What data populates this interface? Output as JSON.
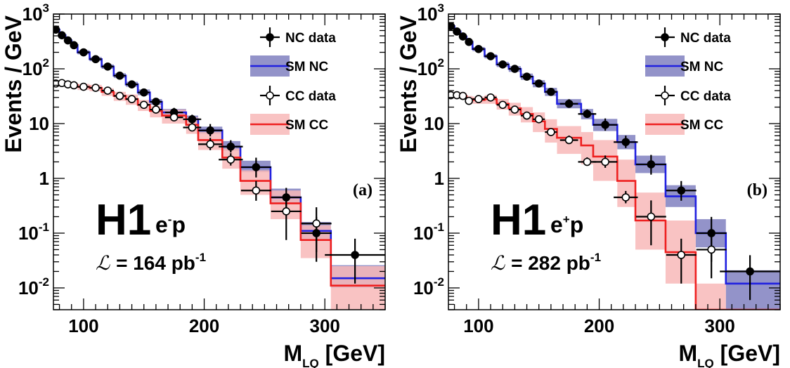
{
  "chart_data": [
    {
      "type": "line",
      "panel_label": "(a)",
      "experiment": "H1",
      "beam": {
        "base": "e",
        "charge": "-",
        "target": "p"
      },
      "lumi": {
        "symbol": "ℒ",
        "text": "= 164 pb",
        "exp": "-1"
      },
      "xlabel": {
        "main": "M",
        "sub": "LQ",
        "unit": "[GeV]"
      },
      "ylabel": "Events / GeV",
      "xlim": [
        75,
        350
      ],
      "ylim": [
        0.004,
        1000
      ],
      "yscale": "log",
      "x_ticks": [
        "100",
        "200",
        "300"
      ],
      "y_ticks": [
        {
          "value": 1000,
          "base": "10",
          "exp": "3"
        },
        {
          "value": 100,
          "base": "10",
          "exp": "2"
        },
        {
          "value": 10,
          "base": "10",
          "exp": ""
        },
        {
          "value": 1,
          "base": "1",
          "exp": ""
        },
        {
          "value": 0.1,
          "base": "10",
          "exp": "-1"
        },
        {
          "value": 0.01,
          "base": "10",
          "exp": "-2"
        }
      ],
      "legend": [
        "NC data",
        "SM NC",
        "CC data",
        "SM CC"
      ],
      "series": [
        {
          "name": "NC data",
          "kind": "points",
          "color": "#000000",
          "filled": true,
          "points": [
            {
              "x": 77,
              "y": 520
            },
            {
              "x": 82,
              "y": 410
            },
            {
              "x": 87,
              "y": 330
            },
            {
              "x": 92,
              "y": 270
            },
            {
              "x": 100,
              "y": 200
            },
            {
              "x": 110,
              "y": 150
            },
            {
              "x": 120,
              "y": 110
            },
            {
              "x": 130,
              "y": 75
            },
            {
              "x": 140,
              "y": 52
            },
            {
              "x": 150,
              "y": 37
            },
            {
              "x": 160,
              "y": 25
            },
            {
              "x": 175,
              "y": 16
            },
            {
              "x": 190,
              "y": 12
            },
            {
              "x": 205,
              "y": 7.5
            },
            {
              "x": 222,
              "y": 3.8
            },
            {
              "x": 243,
              "y": 1.6
            },
            {
              "x": 268,
              "y": 0.45
            },
            {
              "x": 293,
              "y": 0.1
            },
            {
              "x": 325,
              "y": 0.04
            }
          ]
        },
        {
          "name": "CC data",
          "kind": "points",
          "color": "#000000",
          "filled": false,
          "points": [
            {
              "x": 77,
              "y": 54
            },
            {
              "x": 82,
              "y": 55
            },
            {
              "x": 87,
              "y": 52
            },
            {
              "x": 92,
              "y": 50
            },
            {
              "x": 100,
              "y": 47
            },
            {
              "x": 110,
              "y": 45
            },
            {
              "x": 120,
              "y": 40
            },
            {
              "x": 130,
              "y": 32
            },
            {
              "x": 140,
              "y": 28
            },
            {
              "x": 150,
              "y": 22
            },
            {
              "x": 160,
              "y": 18
            },
            {
              "x": 175,
              "y": 13
            },
            {
              "x": 190,
              "y": 8.5
            },
            {
              "x": 205,
              "y": 4.2
            },
            {
              "x": 222,
              "y": 2.2
            },
            {
              "x": 243,
              "y": 0.6
            },
            {
              "x": 268,
              "y": 0.25
            },
            {
              "x": 293,
              "y": 0.15
            }
          ]
        },
        {
          "name": "SM NC",
          "kind": "step",
          "color": "#2020e0",
          "band_color": "#8080c0",
          "edges": [
            75,
            80,
            85,
            90,
            95,
            105,
            115,
            125,
            135,
            145,
            155,
            165,
            185,
            195,
            215,
            230,
            255,
            280,
            305,
            350
          ],
          "values": [
            520,
            410,
            330,
            270,
            200,
            150,
            110,
            75,
            52,
            37,
            25,
            16,
            12,
            7.5,
            3.8,
            1.6,
            0.45,
            0.11,
            0.015
          ],
          "band_low": [
            480,
            380,
            305,
            250,
            184,
            138,
            100,
            68,
            47,
            33,
            22,
            14,
            10.5,
            6.5,
            3.2,
            1.3,
            0.34,
            0.08,
            0.01
          ],
          "band_high": [
            560,
            445,
            360,
            295,
            218,
            164,
            120,
            83,
            58,
            42,
            28,
            18.5,
            14,
            8.8,
            4.8,
            2.1,
            0.65,
            0.16,
            0.026
          ]
        },
        {
          "name": "SM CC",
          "kind": "step",
          "color": "#ee2020",
          "band_color": "#f8b8b8",
          "edges": [
            75,
            80,
            85,
            90,
            95,
            105,
            115,
            125,
            135,
            145,
            155,
            165,
            185,
            195,
            215,
            230,
            255,
            280,
            305,
            350
          ],
          "values": [
            54,
            55,
            52,
            50,
            47,
            45,
            38,
            32,
            28,
            22,
            17,
            14,
            9.5,
            5,
            2.4,
            0.9,
            0.35,
            0.075,
            0.011
          ],
          "band_low": [
            48,
            49,
            46,
            44,
            41,
            39,
            32,
            26,
            22,
            17,
            13,
            10,
            6.5,
            3.3,
            1.5,
            0.5,
            0.18,
            0.035,
            0.004
          ],
          "band_high": [
            60,
            61,
            58,
            56,
            53,
            51,
            44,
            38,
            34,
            27,
            21,
            18,
            13,
            7,
            3.5,
            1.4,
            0.6,
            0.14,
            0.025
          ]
        }
      ]
    },
    {
      "type": "line",
      "panel_label": "(b)",
      "experiment": "H1",
      "beam": {
        "base": "e",
        "charge": "+",
        "target": "p"
      },
      "lumi": {
        "symbol": "ℒ",
        "text": "= 282 pb",
        "exp": "-1"
      },
      "xlabel": {
        "main": "M",
        "sub": "LQ",
        "unit": "[GeV]"
      },
      "ylabel": "Events / GeV",
      "xlim": [
        75,
        350
      ],
      "ylim": [
        0.004,
        1000
      ],
      "yscale": "log",
      "x_ticks": [
        "100",
        "200",
        "300"
      ],
      "y_ticks": [
        {
          "value": 1000,
          "base": "10",
          "exp": "3"
        },
        {
          "value": 100,
          "base": "10",
          "exp": "2"
        },
        {
          "value": 10,
          "base": "10",
          "exp": ""
        },
        {
          "value": 1,
          "base": "1",
          "exp": ""
        },
        {
          "value": 0.1,
          "base": "10",
          "exp": "-1"
        },
        {
          "value": 0.01,
          "base": "10",
          "exp": "-2"
        }
      ],
      "legend": [
        "NC data",
        "SM NC",
        "CC data",
        "SM CC"
      ],
      "series": [
        {
          "name": "NC data",
          "kind": "points",
          "color": "#000000",
          "filled": true,
          "points": [
            {
              "x": 77,
              "y": 600
            },
            {
              "x": 82,
              "y": 480
            },
            {
              "x": 87,
              "y": 390
            },
            {
              "x": 92,
              "y": 310
            },
            {
              "x": 100,
              "y": 230
            },
            {
              "x": 110,
              "y": 170
            },
            {
              "x": 120,
              "y": 120
            },
            {
              "x": 130,
              "y": 100
            },
            {
              "x": 140,
              "y": 72
            },
            {
              "x": 150,
              "y": 54
            },
            {
              "x": 160,
              "y": 38
            },
            {
              "x": 175,
              "y": 23
            },
            {
              "x": 190,
              "y": 15
            },
            {
              "x": 205,
              "y": 9.5
            },
            {
              "x": 222,
              "y": 4.6
            },
            {
              "x": 243,
              "y": 1.8
            },
            {
              "x": 268,
              "y": 0.6
            },
            {
              "x": 293,
              "y": 0.1
            },
            {
              "x": 325,
              "y": 0.02
            }
          ]
        },
        {
          "name": "CC data",
          "kind": "points",
          "color": "#000000",
          "filled": false,
          "points": [
            {
              "x": 77,
              "y": 33
            },
            {
              "x": 82,
              "y": 33
            },
            {
              "x": 87,
              "y": 32
            },
            {
              "x": 92,
              "y": 26
            },
            {
              "x": 100,
              "y": 28
            },
            {
              "x": 110,
              "y": 30
            },
            {
              "x": 120,
              "y": 22
            },
            {
              "x": 130,
              "y": 18
            },
            {
              "x": 140,
              "y": 14
            },
            {
              "x": 150,
              "y": 12
            },
            {
              "x": 160,
              "y": 7
            },
            {
              "x": 175,
              "y": 5
            },
            {
              "x": 190,
              "y": 2
            },
            {
              "x": 205,
              "y": 2
            },
            {
              "x": 222,
              "y": 0.45
            },
            {
              "x": 243,
              "y": 0.2
            },
            {
              "x": 268,
              "y": 0.04
            },
            {
              "x": 293,
              "y": 0.05
            }
          ]
        },
        {
          "name": "SM NC",
          "kind": "step",
          "color": "#2020e0",
          "band_color": "#8080c0",
          "edges": [
            75,
            80,
            85,
            90,
            95,
            105,
            115,
            125,
            135,
            145,
            155,
            165,
            185,
            195,
            215,
            230,
            255,
            280,
            305,
            350
          ],
          "values": [
            600,
            480,
            390,
            310,
            230,
            170,
            120,
            100,
            72,
            54,
            38,
            23,
            15,
            9.5,
            4.6,
            1.8,
            0.47,
            0.1,
            0.012
          ],
          "band_low": [
            555,
            445,
            360,
            285,
            210,
            155,
            108,
            88,
            63,
            46,
            32,
            19,
            12,
            7.3,
            3.4,
            1.25,
            0.3,
            0.055,
            0.004
          ],
          "band_high": [
            645,
            515,
            420,
            335,
            250,
            185,
            133,
            112,
            82,
            62,
            45,
            28,
            18.5,
            12.2,
            6.2,
            2.6,
            0.75,
            0.18,
            0.021
          ]
        },
        {
          "name": "SM CC",
          "kind": "step",
          "color": "#ee2020",
          "band_color": "#f8b8b8",
          "edges": [
            75,
            80,
            85,
            90,
            95,
            105,
            115,
            125,
            135,
            145,
            155,
            165,
            185,
            195,
            215,
            230,
            255,
            280,
            305,
            350
          ],
          "values": [
            33,
            33,
            32,
            28,
            27,
            28,
            23,
            19,
            15,
            11,
            8,
            5.5,
            4,
            2.5,
            0.9,
            0.17,
            0.045,
            0.004,
            0.004
          ],
          "band_low": [
            29,
            29,
            28,
            24,
            23,
            23,
            18,
            14,
            10.5,
            7,
            4.5,
            2.8,
            1.8,
            0.9,
            0.3,
            0.05,
            0.012,
            0.004,
            0.004
          ],
          "band_high": [
            37,
            37,
            36,
            32,
            31,
            33,
            28,
            24,
            20,
            16,
            12,
            9,
            7,
            5,
            2.2,
            0.55,
            0.17,
            0.012,
            0.004
          ]
        }
      ]
    }
  ]
}
